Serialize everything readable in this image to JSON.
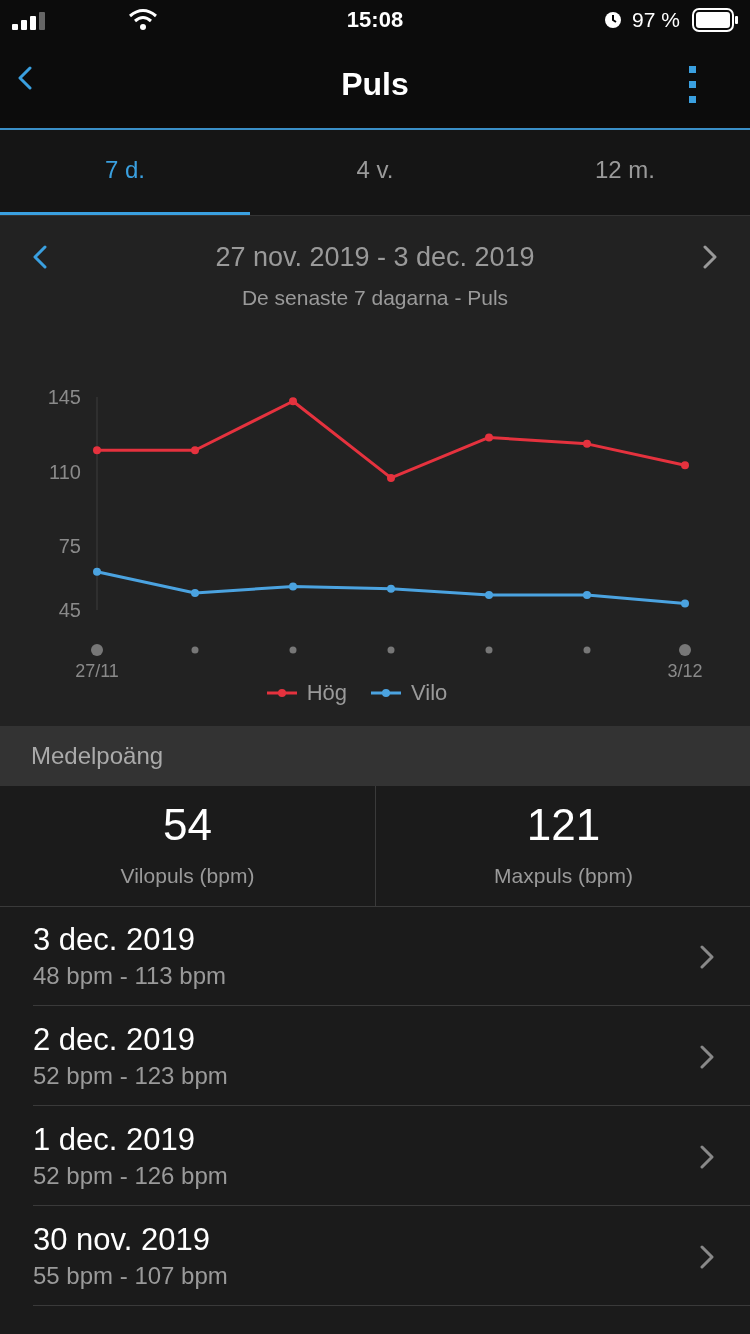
{
  "chart_data": {
    "type": "line",
    "title": "27 nov. 2019 - 3 dec. 2019",
    "subtitle": "De senaste 7 dagarna - Puls",
    "categories": [
      "27/11",
      null,
      null,
      null,
      null,
      null,
      "3/12"
    ],
    "series": [
      {
        "name": "Hög",
        "color": "#e5323e",
        "values": [
          120,
          120,
          143,
          107,
          126,
          123,
          113
        ]
      },
      {
        "name": "Vilo",
        "color": "#4ba3e0",
        "values": [
          63,
          53,
          56,
          55,
          52,
          52,
          48
        ]
      }
    ],
    "ylim": [
      45,
      145
    ],
    "yticks": [
      45,
      75,
      110,
      145
    ],
    "grid": false,
    "legend": "bottom",
    "marker": "circle",
    "line_style": "solid",
    "annotations": [
      "15:08",
      "97 %",
      "Puls",
      "7 d.",
      "4 v.",
      "12 m.",
      "Medelpoäng",
      "54",
      "Vilopuls (bpm)",
      "121",
      "Maxpuls (bpm)",
      "3 dec. 2019",
      "48 bpm - 113 bpm",
      "2 dec. 2019",
      "52 bpm - 123 bpm",
      "1 dec. 2019",
      "52 bpm - 126 bpm",
      "30 nov. 2019",
      "55 bpm - 107 bpm"
    ]
  }
}
